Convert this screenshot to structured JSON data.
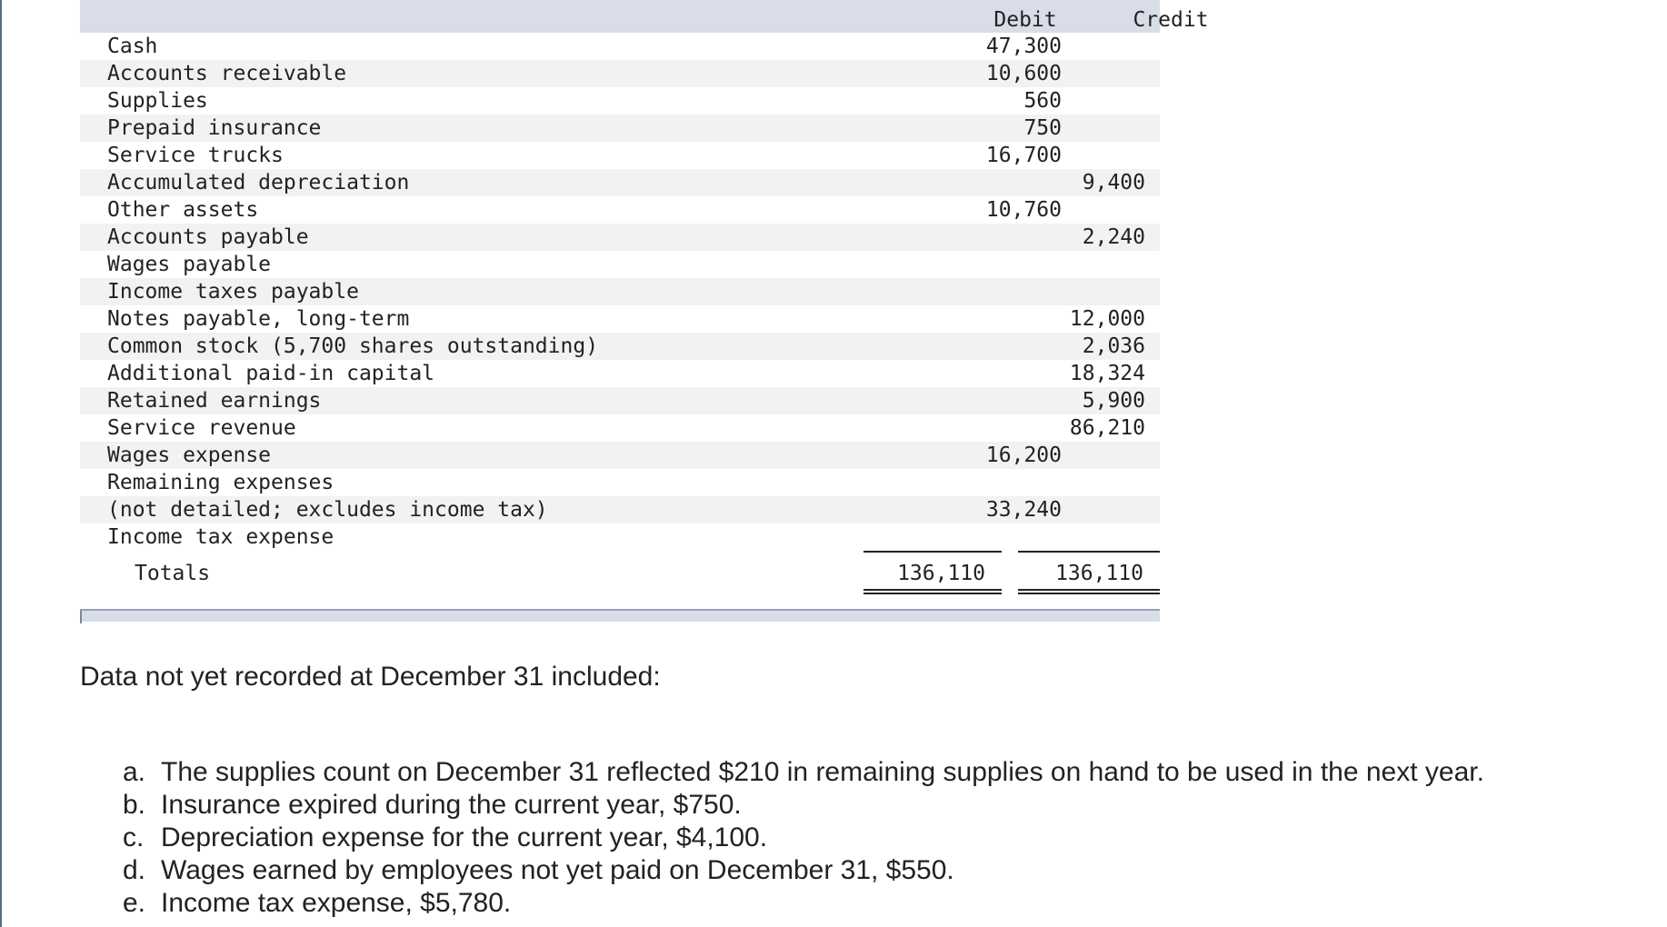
{
  "trial_balance": {
    "header": {
      "debit_label": "Debit",
      "credit_label": "Credit"
    },
    "rows": [
      {
        "account": "Cash",
        "debit": "47,300",
        "credit": ""
      },
      {
        "account": "Accounts receivable",
        "debit": "10,600",
        "credit": ""
      },
      {
        "account": "Supplies",
        "debit": "560",
        "credit": ""
      },
      {
        "account": "Prepaid insurance",
        "debit": "750",
        "credit": ""
      },
      {
        "account": "Service trucks",
        "debit": "16,700",
        "credit": ""
      },
      {
        "account": "Accumulated depreciation",
        "debit": "",
        "credit": "9,400"
      },
      {
        "account": "Other assets",
        "debit": "10,760",
        "credit": ""
      },
      {
        "account": "Accounts payable",
        "debit": "",
        "credit": "2,240"
      },
      {
        "account": "Wages payable",
        "debit": "",
        "credit": ""
      },
      {
        "account": "Income taxes payable",
        "debit": "",
        "credit": ""
      },
      {
        "account": "Notes payable, long-term",
        "debit": "",
        "credit": "12,000"
      },
      {
        "account": "Common stock (5,700 shares outstanding)",
        "debit": "",
        "credit": "2,036"
      },
      {
        "account": "Additional paid-in capital",
        "debit": "",
        "credit": "18,324"
      },
      {
        "account": "Retained earnings",
        "debit": "",
        "credit": "5,900"
      },
      {
        "account": "Service revenue",
        "debit": "",
        "credit": "86,210"
      },
      {
        "account": "Wages expense",
        "debit": "16,200",
        "credit": ""
      },
      {
        "account": "Remaining expenses",
        "debit": "",
        "credit": ""
      },
      {
        "account": "(not detailed; excludes income tax)",
        "debit": "33,240",
        "credit": ""
      },
      {
        "account": "Income tax expense",
        "debit": "",
        "credit": ""
      }
    ],
    "totals": {
      "label": "Totals",
      "debit": "136,110",
      "credit": "136,110"
    }
  },
  "adjustments": {
    "intro": "Data not yet recorded at December 31 included:",
    "items": [
      {
        "marker": "a.",
        "text": "The supplies count on December 31 reflected $210 in remaining supplies on hand to be used in the next year."
      },
      {
        "marker": "b.",
        "text": "Insurance expired during the current year, $750."
      },
      {
        "marker": "c.",
        "text": "Depreciation expense for the current year, $4,100."
      },
      {
        "marker": "d.",
        "text": "Wages earned by employees not yet paid on December 31, $550."
      },
      {
        "marker": "e.",
        "text": "Income tax expense, $5,780."
      }
    ]
  }
}
